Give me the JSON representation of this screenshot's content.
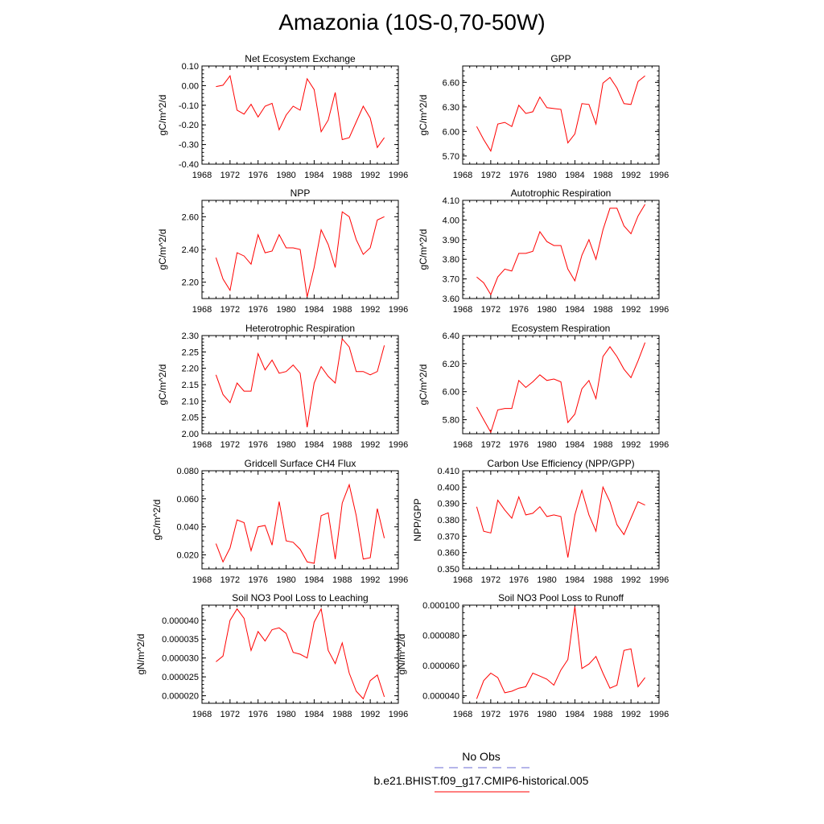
{
  "title": "Amazonia (10S-0,70-50W)",
  "legend": [
    {
      "label": "No Obs",
      "color": "#6b6bd6",
      "style": "dashed"
    },
    {
      "label": "b.e21.BHIST.f09_g17.CMIP6-historical.005",
      "color": "#ff0000",
      "style": "solid"
    }
  ],
  "chart_data": [
    {
      "type": "line",
      "title": "Net Ecosystem Exchange",
      "ylabel": "gC/m^2/d",
      "xlim": [
        1968,
        1996
      ],
      "xticks": [
        1968,
        1972,
        1976,
        1980,
        1984,
        1988,
        1992,
        1996
      ],
      "ylim": [
        -0.4,
        0.1
      ],
      "yticks": [
        -0.4,
        -0.3,
        -0.2,
        -0.1,
        0.0,
        0.1
      ],
      "ydec": 2,
      "x": [
        1970,
        1971,
        1972,
        1973,
        1974,
        1975,
        1976,
        1977,
        1978,
        1979,
        1980,
        1981,
        1982,
        1983,
        1984,
        1985,
        1986,
        1987,
        1988,
        1989,
        1990,
        1991,
        1992,
        1993,
        1994
      ],
      "series": [
        {
          "color": "#ff0000",
          "values": [
            -0.005,
            0.002,
            0.05,
            -0.125,
            -0.145,
            -0.095,
            -0.16,
            -0.105,
            -0.09,
            -0.225,
            -0.15,
            -0.105,
            -0.125,
            0.035,
            -0.02,
            -0.235,
            -0.175,
            -0.035,
            -0.275,
            -0.265,
            -0.185,
            -0.105,
            -0.165,
            -0.315,
            -0.265
          ]
        }
      ]
    },
    {
      "type": "line",
      "title": "GPP",
      "ylabel": "gC/m^2/d",
      "xlim": [
        1968,
        1996
      ],
      "xticks": [
        1968,
        1972,
        1976,
        1980,
        1984,
        1988,
        1992,
        1996
      ],
      "ylim": [
        5.6,
        6.8
      ],
      "yticks": [
        5.7,
        6.0,
        6.3,
        6.6
      ],
      "ydec": 2,
      "x": [
        1970,
        1971,
        1972,
        1973,
        1974,
        1975,
        1976,
        1977,
        1978,
        1979,
        1980,
        1981,
        1982,
        1983,
        1984,
        1985,
        1986,
        1987,
        1988,
        1989,
        1990,
        1991,
        1992,
        1993,
        1994
      ],
      "series": [
        {
          "color": "#ff0000",
          "values": [
            6.06,
            5.9,
            5.76,
            6.09,
            6.11,
            6.06,
            6.32,
            6.22,
            6.24,
            6.42,
            6.29,
            6.28,
            6.27,
            5.86,
            5.97,
            6.34,
            6.33,
            6.09,
            6.59,
            6.66,
            6.53,
            6.34,
            6.33,
            6.61,
            6.68
          ]
        }
      ]
    },
    {
      "type": "line",
      "title": "NPP",
      "ylabel": "gC/m^2/d",
      "xlim": [
        1968,
        1996
      ],
      "xticks": [
        1968,
        1972,
        1976,
        1980,
        1984,
        1988,
        1992,
        1996
      ],
      "ylim": [
        2.1,
        2.7
      ],
      "yticks": [
        2.2,
        2.4,
        2.6
      ],
      "ydec": 2,
      "x": [
        1970,
        1971,
        1972,
        1973,
        1974,
        1975,
        1976,
        1977,
        1978,
        1979,
        1980,
        1981,
        1982,
        1983,
        1984,
        1985,
        1986,
        1987,
        1988,
        1989,
        1990,
        1991,
        1992,
        1993,
        1994
      ],
      "series": [
        {
          "color": "#ff0000",
          "values": [
            2.35,
            2.22,
            2.15,
            2.38,
            2.36,
            2.31,
            2.49,
            2.38,
            2.39,
            2.49,
            2.41,
            2.41,
            2.4,
            2.11,
            2.29,
            2.52,
            2.43,
            2.29,
            2.63,
            2.6,
            2.46,
            2.37,
            2.41,
            2.58,
            2.6
          ]
        }
      ]
    },
    {
      "type": "line",
      "title": "Autotrophic Respiration",
      "ylabel": "gC/m^2/d",
      "xlim": [
        1968,
        1996
      ],
      "xticks": [
        1968,
        1972,
        1976,
        1980,
        1984,
        1988,
        1992,
        1996
      ],
      "ylim": [
        3.6,
        4.1
      ],
      "yticks": [
        3.6,
        3.7,
        3.8,
        3.9,
        4.0,
        4.1
      ],
      "ydec": 2,
      "x": [
        1970,
        1971,
        1972,
        1973,
        1974,
        1975,
        1976,
        1977,
        1978,
        1979,
        1980,
        1981,
        1982,
        1983,
        1984,
        1985,
        1986,
        1987,
        1988,
        1989,
        1990,
        1991,
        1992,
        1993,
        1994
      ],
      "series": [
        {
          "color": "#ff0000",
          "values": [
            3.71,
            3.68,
            3.62,
            3.71,
            3.75,
            3.74,
            3.83,
            3.83,
            3.84,
            3.94,
            3.89,
            3.87,
            3.87,
            3.75,
            3.69,
            3.82,
            3.9,
            3.8,
            3.95,
            4.06,
            4.06,
            3.97,
            3.93,
            4.02,
            4.08
          ]
        }
      ]
    },
    {
      "type": "line",
      "title": "Heterotrophic Respiration",
      "ylabel": "gC/m^2/d",
      "xlim": [
        1968,
        1996
      ],
      "xticks": [
        1968,
        1972,
        1976,
        1980,
        1984,
        1988,
        1992,
        1996
      ],
      "ylim": [
        2.0,
        2.3
      ],
      "yticks": [
        2.0,
        2.05,
        2.1,
        2.15,
        2.2,
        2.25,
        2.3
      ],
      "ydec": 2,
      "x": [
        1970,
        1971,
        1972,
        1973,
        1974,
        1975,
        1976,
        1977,
        1978,
        1979,
        1980,
        1981,
        1982,
        1983,
        1984,
        1985,
        1986,
        1987,
        1988,
        1989,
        1990,
        1991,
        1992,
        1993,
        1994
      ],
      "series": [
        {
          "color": "#ff0000",
          "values": [
            2.18,
            2.12,
            2.095,
            2.155,
            2.13,
            2.13,
            2.245,
            2.195,
            2.225,
            2.185,
            2.19,
            2.21,
            2.185,
            2.02,
            2.155,
            2.205,
            2.175,
            2.155,
            2.29,
            2.265,
            2.19,
            2.19,
            2.18,
            2.19,
            2.27
          ]
        }
      ]
    },
    {
      "type": "line",
      "title": "Ecosystem Respiration",
      "ylabel": "gC/m^2/d",
      "xlim": [
        1968,
        1996
      ],
      "xticks": [
        1968,
        1972,
        1976,
        1980,
        1984,
        1988,
        1992,
        1996
      ],
      "ylim": [
        5.7,
        6.4
      ],
      "yticks": [
        5.8,
        6.0,
        6.2,
        6.4
      ],
      "ydec": 2,
      "x": [
        1970,
        1971,
        1972,
        1973,
        1974,
        1975,
        1976,
        1977,
        1978,
        1979,
        1980,
        1981,
        1982,
        1983,
        1984,
        1985,
        1986,
        1987,
        1988,
        1989,
        1990,
        1991,
        1992,
        1993,
        1994
      ],
      "series": [
        {
          "color": "#ff0000",
          "values": [
            5.89,
            5.8,
            5.71,
            5.87,
            5.88,
            5.88,
            6.08,
            6.03,
            6.07,
            6.12,
            6.08,
            6.09,
            6.07,
            5.78,
            5.84,
            6.02,
            6.08,
            5.95,
            6.25,
            6.32,
            6.25,
            6.16,
            6.1,
            6.22,
            6.35
          ]
        }
      ]
    },
    {
      "type": "line",
      "title": "Gridcell Surface CH4 Flux",
      "ylabel": "gC/m^2/d",
      "xlim": [
        1968,
        1996
      ],
      "xticks": [
        1968,
        1972,
        1976,
        1980,
        1984,
        1988,
        1992,
        1996
      ],
      "ylim": [
        0.01,
        0.08
      ],
      "yticks": [
        0.02,
        0.04,
        0.06,
        0.08
      ],
      "ydec": 3,
      "x": [
        1970,
        1971,
        1972,
        1973,
        1974,
        1975,
        1976,
        1977,
        1978,
        1979,
        1980,
        1981,
        1982,
        1983,
        1984,
        1985,
        1986,
        1987,
        1988,
        1989,
        1990,
        1991,
        1992,
        1993,
        1994
      ],
      "series": [
        {
          "color": "#ff0000",
          "values": [
            0.028,
            0.015,
            0.025,
            0.045,
            0.043,
            0.023,
            0.04,
            0.041,
            0.027,
            0.058,
            0.03,
            0.029,
            0.024,
            0.015,
            0.014,
            0.048,
            0.05,
            0.017,
            0.057,
            0.07,
            0.048,
            0.017,
            0.018,
            0.053,
            0.032
          ]
        }
      ]
    },
    {
      "type": "line",
      "title": "Carbon Use Efficiency (NPP/GPP)",
      "ylabel": "NPP/GPP",
      "xlim": [
        1968,
        1996
      ],
      "xticks": [
        1968,
        1972,
        1976,
        1980,
        1984,
        1988,
        1992,
        1996
      ],
      "ylim": [
        0.35,
        0.41
      ],
      "yticks": [
        0.35,
        0.36,
        0.37,
        0.38,
        0.39,
        0.4,
        0.41
      ],
      "ydec": 3,
      "x": [
        1970,
        1971,
        1972,
        1973,
        1974,
        1975,
        1976,
        1977,
        1978,
        1979,
        1980,
        1981,
        1982,
        1983,
        1984,
        1985,
        1986,
        1987,
        1988,
        1989,
        1990,
        1991,
        1992,
        1993,
        1994
      ],
      "series": [
        {
          "color": "#ff0000",
          "values": [
            0.388,
            0.373,
            0.372,
            0.392,
            0.386,
            0.381,
            0.394,
            0.383,
            0.384,
            0.388,
            0.382,
            0.383,
            0.382,
            0.357,
            0.383,
            0.398,
            0.383,
            0.373,
            0.4,
            0.391,
            0.377,
            0.371,
            0.381,
            0.391,
            0.389
          ]
        }
      ]
    },
    {
      "type": "line",
      "title": "Soil NO3 Pool Loss to Leaching",
      "ylabel": "gN/m^2/d",
      "xlim": [
        1968,
        1996
      ],
      "xticks": [
        1968,
        1972,
        1976,
        1980,
        1984,
        1988,
        1992,
        1996
      ],
      "ylim": [
        1.8e-05,
        4.4e-05
      ],
      "yticks": [
        2e-05,
        2.5e-05,
        3e-05,
        3.5e-05,
        4e-05
      ],
      "ydec": 6,
      "x": [
        1970,
        1971,
        1972,
        1973,
        1974,
        1975,
        1976,
        1977,
        1978,
        1979,
        1980,
        1981,
        1982,
        1983,
        1984,
        1985,
        1986,
        1987,
        1988,
        1989,
        1990,
        1991,
        1992,
        1993,
        1994
      ],
      "series": [
        {
          "color": "#ff0000",
          "values": [
            2.9e-05,
            3.05e-05,
            4e-05,
            4.3e-05,
            4.05e-05,
            3.2e-05,
            3.7e-05,
            3.45e-05,
            3.75e-05,
            3.8e-05,
            3.65e-05,
            3.15e-05,
            3.1e-05,
            3e-05,
            3.95e-05,
            4.3e-05,
            3.2e-05,
            2.85e-05,
            3.4e-05,
            2.6e-05,
            2.12e-05,
            1.92e-05,
            2.4e-05,
            2.55e-05,
            1.97e-05
          ]
        }
      ]
    },
    {
      "type": "line",
      "title": "Soil NO3 Pool Loss to Runoff",
      "ylabel": "gN/m^2/d",
      "xlim": [
        1968,
        1996
      ],
      "xticks": [
        1968,
        1972,
        1976,
        1980,
        1984,
        1988,
        1992,
        1996
      ],
      "ylim": [
        3.5e-05,
        0.0001
      ],
      "yticks": [
        4e-05,
        6e-05,
        8e-05,
        0.0001
      ],
      "ydec": 6,
      "x": [
        1970,
        1971,
        1972,
        1973,
        1974,
        1975,
        1976,
        1977,
        1978,
        1979,
        1980,
        1981,
        1982,
        1983,
        1984,
        1985,
        1986,
        1987,
        1988,
        1989,
        1990,
        1991,
        1992,
        1993,
        1994
      ],
      "series": [
        {
          "color": "#ff0000",
          "values": [
            3.8e-05,
            5e-05,
            5.5e-05,
            5.2e-05,
            4.2e-05,
            4.3e-05,
            4.5e-05,
            4.6e-05,
            5.5e-05,
            5.3e-05,
            5.1e-05,
            4.7e-05,
            5.7e-05,
            6.4e-05,
            9.9e-05,
            5.8e-05,
            6.1e-05,
            6.6e-05,
            5.5e-05,
            4.5e-05,
            4.7e-05,
            7e-05,
            7.1e-05,
            4.6e-05,
            5.2e-05
          ]
        }
      ]
    }
  ]
}
